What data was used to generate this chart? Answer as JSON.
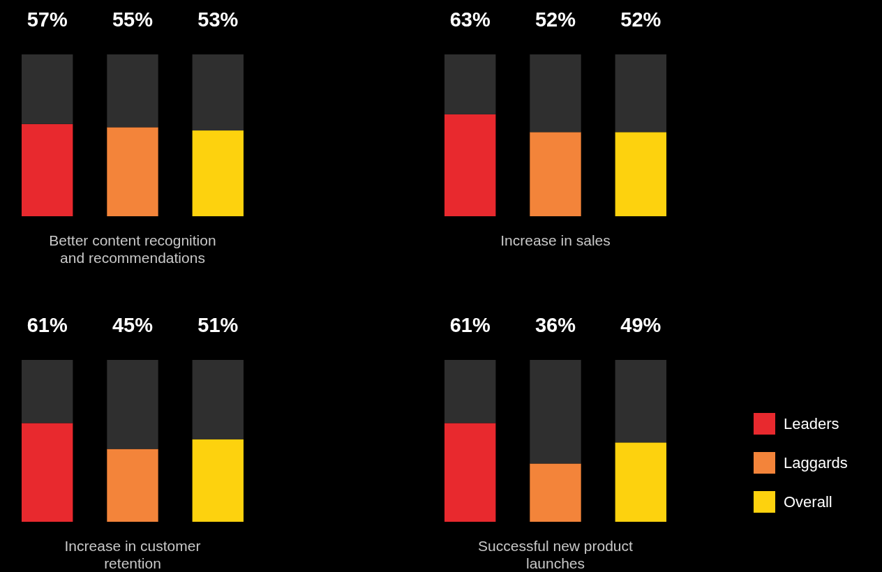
{
  "chart_data": [
    {
      "type": "bar",
      "xlabel": "Better content recognition and recommendations",
      "categories": [
        null,
        null,
        null
      ],
      "stacked": true,
      "series": [
        {
          "colors": [
            "#e8292e",
            "#f3843a",
            "#fdd20e"
          ],
          "values": [
            57,
            55,
            53
          ],
          "value_labels": [
            "57%",
            "55%",
            "53%"
          ]
        },
        {
          "color": "#2f2f2f",
          "values": [
            43,
            45,
            47
          ]
        }
      ]
    },
    {
      "type": "bar",
      "xlabel": "Increase in sales",
      "categories": [
        null,
        null,
        null
      ],
      "stacked": true,
      "series": [
        {
          "colors": [
            "#e8292e",
            "#f3843a",
            "#fdd20e"
          ],
          "values": [
            63,
            52,
            52
          ],
          "value_labels": [
            "63%",
            "52%",
            "52%"
          ]
        },
        {
          "color": "#2f2f2f",
          "values": [
            37,
            48,
            48
          ]
        }
      ]
    },
    {
      "type": "bar",
      "xlabel": "Increase in customer retention",
      "categories": [
        null,
        null,
        null
      ],
      "stacked": true,
      "series": [
        {
          "colors": [
            "#e8292e",
            "#f3843a",
            "#fdd20e"
          ],
          "values": [
            61,
            45,
            51
          ],
          "value_labels": [
            "61%",
            "45%",
            "51%"
          ]
        },
        {
          "color": "#2f2f2f",
          "values": [
            39,
            55,
            49
          ]
        }
      ]
    },
    {
      "type": "bar",
      "xlabel": "Successful new product launches",
      "categories": [
        null,
        null,
        null
      ],
      "stacked": true,
      "series": [
        {
          "colors": [
            "#e8292e",
            "#f3843a",
            "#fdd20e"
          ],
          "values": [
            61,
            36,
            49
          ],
          "value_labels": [
            "61%",
            "36%",
            "49%"
          ]
        },
        {
          "color": "#2f2f2f",
          "values": [
            39,
            64,
            51
          ]
        }
      ]
    },
    {
      "type": "other",
      "categories": [
        "Leaders",
        "Laggards",
        "Overall"
      ],
      "colors": [
        "#e8292e",
        "#f3843a",
        "#fdd20e"
      ]
    }
  ]
}
